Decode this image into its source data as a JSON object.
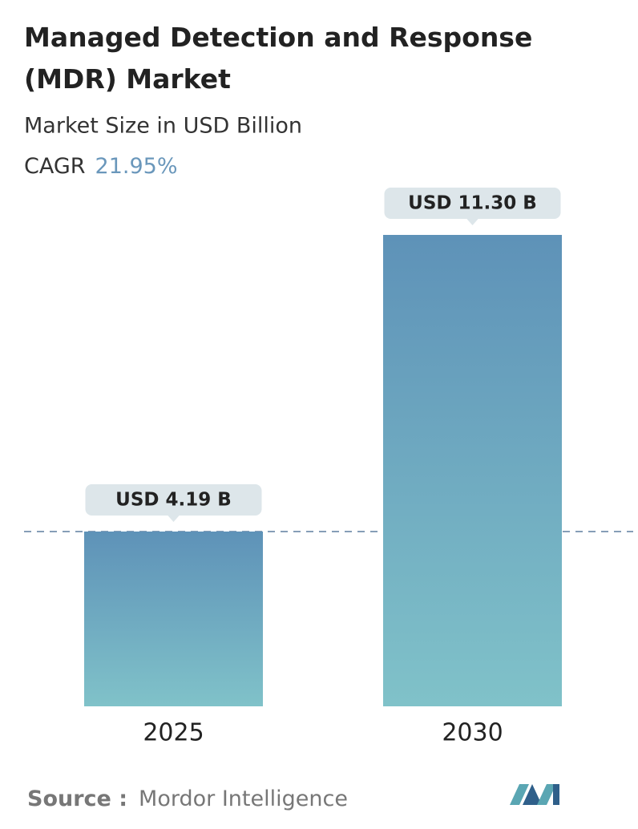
{
  "chart_data": {
    "type": "bar",
    "title": "Managed Detection and Response (MDR) Market",
    "subtitle": "Market Size in USD Billion",
    "cagr_label": "CAGR",
    "cagr_value": "21.95%",
    "categories": [
      "2025",
      "2030"
    ],
    "values": [
      4.19,
      11.3
    ],
    "value_labels": [
      "USD 4.19 B",
      "USD 11.30 B"
    ],
    "color_top": "#5e92b8",
    "color_bottom": "#80c2c9",
    "source_label": "Source :",
    "source": "Mordor Intelligence"
  }
}
